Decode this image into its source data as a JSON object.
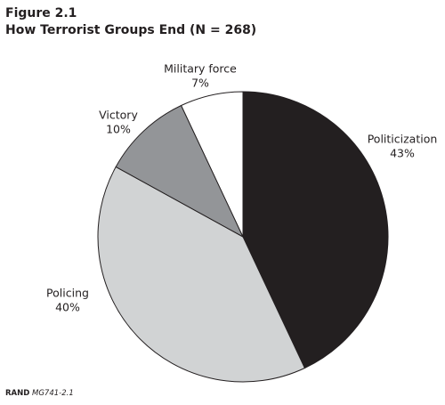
{
  "chart_data": {
    "type": "pie",
    "title": "Figure 2.1",
    "subtitle": "How Terrorist Groups End (N = 268)",
    "categories": [
      "Politicization",
      "Policing",
      "Victory",
      "Military force"
    ],
    "values": [
      43,
      40,
      10,
      7
    ],
    "value_labels": [
      "43%",
      "40%",
      "10%",
      "7%"
    ],
    "colors": [
      "#231f20",
      "#d1d3d4",
      "#939598",
      "#ffffff"
    ],
    "source": "RAND",
    "source_id": "MG741-2.1"
  }
}
